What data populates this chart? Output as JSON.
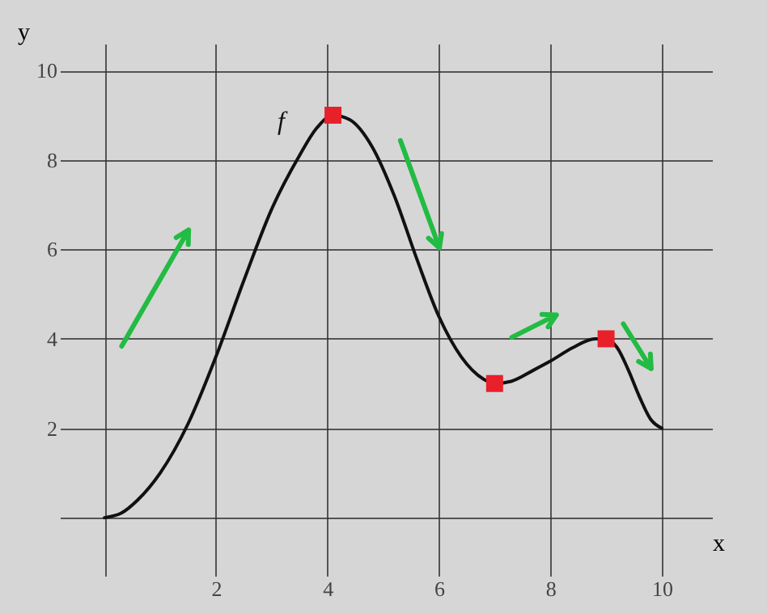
{
  "chart_data": {
    "type": "line",
    "xlabel": "x",
    "ylabel": "y",
    "xlim": [
      -0.8,
      10.9
    ],
    "ylim": [
      -1.3,
      10.6
    ],
    "xticks": [
      {
        "value": 0,
        "label": null
      },
      2,
      4,
      6,
      8,
      10
    ],
    "yticks": [
      {
        "value": 0,
        "label": null
      },
      2,
      4,
      6,
      8,
      10
    ],
    "grid": true,
    "x": [
      0,
      0.3,
      0.6,
      1,
      1.5,
      2,
      2.5,
      3,
      3.5,
      3.8,
      4.1,
      4.4,
      4.8,
      5.2,
      5.6,
      6,
      6.4,
      6.8,
      7,
      7.3,
      7.7,
      8,
      8.4,
      8.8,
      9,
      9.2,
      9.4,
      9.6,
      9.8,
      10
    ],
    "series": [
      {
        "name": "f",
        "color": "#111111",
        "values": [
          0,
          0.1,
          0.4,
          1,
          2.1,
          3.6,
          5.3,
          6.9,
          8.1,
          8.7,
          9,
          8.9,
          8.3,
          7.2,
          5.8,
          4.5,
          3.6,
          3.1,
          3,
          3.05,
          3.3,
          3.5,
          3.8,
          4,
          4,
          3.8,
          3.3,
          2.7,
          2.2,
          2
        ]
      },
      {
        "type": "scatter",
        "marker": "square",
        "color": "#e8202a",
        "x": [
          4.1,
          7,
          9
        ],
        "values": [
          9,
          3,
          4
        ]
      }
    ]
  }
}
